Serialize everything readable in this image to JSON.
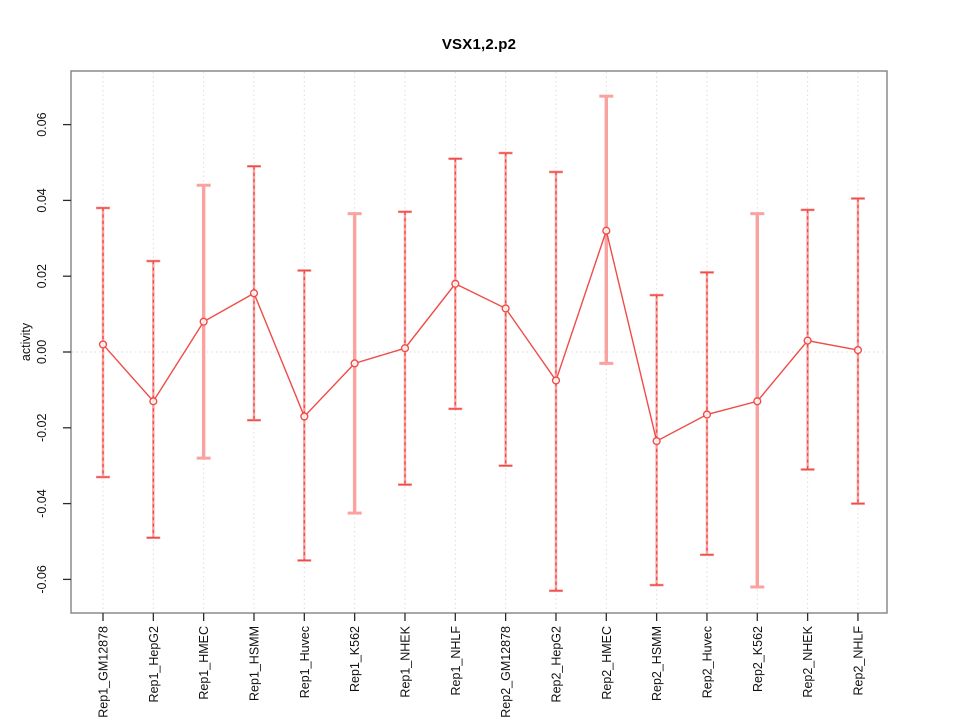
{
  "chart_data": {
    "type": "line",
    "title": "VSX1,2.p2",
    "ylabel": "activity",
    "xlabel": "",
    "ylim": [
      -0.0689,
      0.0741
    ],
    "yticks": [
      -0.06,
      -0.04,
      -0.02,
      0,
      0.02,
      0.04,
      0.06
    ],
    "ytick_labels": [
      "-0.06",
      "-0.04",
      "-0.02",
      "0.00",
      "0.02",
      "0.04",
      "0.06"
    ],
    "grid": "dotted vertical gridline at every category; dotted horizontal line at zero",
    "legend": "none",
    "categories": [
      "Rep1_GM12878",
      "Rep1_HepG2",
      "Rep1_HMEC",
      "Rep1_HSMM",
      "Rep1_Huvec",
      "Rep1_K562",
      "Rep1_NHEK",
      "Rep1_NHLF",
      "Rep2_GM12878",
      "Rep2_HepG2",
      "Rep2_HMEC",
      "Rep2_HSMM",
      "Rep2_Huvec",
      "Rep2_K562",
      "Rep2_NHEK",
      "Rep2_NHLF"
    ],
    "series": [
      {
        "name": "activity",
        "marker": "open-circle",
        "values": [
          0.002,
          -0.013,
          0.008,
          0.0155,
          -0.017,
          -0.003,
          0.001,
          0.018,
          0.0115,
          -0.0075,
          0.032,
          -0.0235,
          -0.0165,
          -0.013,
          0.003,
          0.0005
        ]
      }
    ],
    "error_upper": [
      0.038,
      0.024,
      0.044,
      0.049,
      0.0215,
      0.0365,
      0.037,
      0.051,
      0.0525,
      0.0475,
      0.0675,
      0.015,
      0.021,
      0.0365,
      0.0375,
      0.0405
    ],
    "error_lower": [
      -0.033,
      -0.049,
      -0.028,
      -0.018,
      -0.055,
      -0.0425,
      -0.035,
      -0.015,
      -0.03,
      -0.063,
      -0.003,
      -0.0615,
      -0.0535,
      -0.062,
      -0.031,
      -0.04
    ],
    "salmon_only_bars": [
      2,
      5,
      10,
      13
    ],
    "colors": {
      "point_line": "#ef4c48",
      "error_bar_light": "#f9a2a0",
      "grid": "#dcdcdc",
      "box": "#838383",
      "tick": "#2b2b2b",
      "text": "#111111"
    }
  }
}
